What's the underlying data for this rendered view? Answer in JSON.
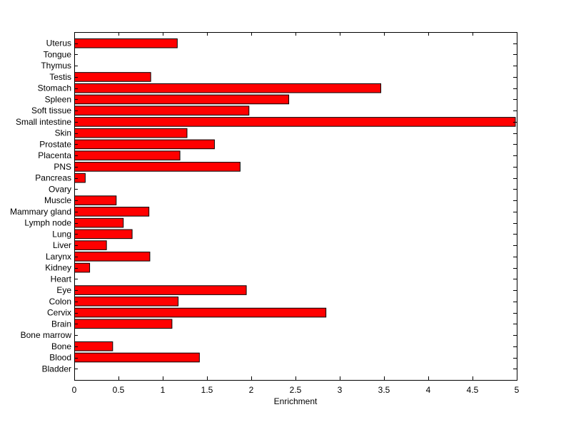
{
  "chart_data": {
    "type": "bar",
    "orientation": "horizontal",
    "title": "",
    "xlabel": "Enrichment",
    "ylabel": "",
    "xlim": [
      0,
      5
    ],
    "xticks": [
      0,
      0.5,
      1,
      1.5,
      2,
      2.5,
      3,
      3.5,
      4,
      4.5,
      5
    ],
    "grid": false,
    "bar_color": "#ff0000",
    "edge_color": "#000000",
    "categories": [
      "Uterus",
      "Tongue",
      "Thymus",
      "Testis",
      "Stomach",
      "Spleen",
      "Soft tissue",
      "Small intestine",
      "Skin",
      "Prostate",
      "Placenta",
      "PNS",
      "Pancreas",
      "Ovary",
      "Muscle",
      "Mammary gland",
      "Lymph node",
      "Lung",
      "Liver",
      "Larynx",
      "Kidney",
      "Heart",
      "Eye",
      "Colon",
      "Cervix",
      "Brain",
      "Bone marrow",
      "Bone",
      "Blood",
      "Bladder"
    ],
    "values": [
      1.16,
      0,
      0,
      0.86,
      3.46,
      2.42,
      1.97,
      4.98,
      1.27,
      1.58,
      1.19,
      1.87,
      0.12,
      0,
      0.47,
      0.84,
      0.55,
      0.65,
      0.36,
      0.85,
      0.17,
      0,
      1.94,
      1.17,
      2.84,
      1.1,
      0,
      0.43,
      1.41,
      0
    ]
  }
}
